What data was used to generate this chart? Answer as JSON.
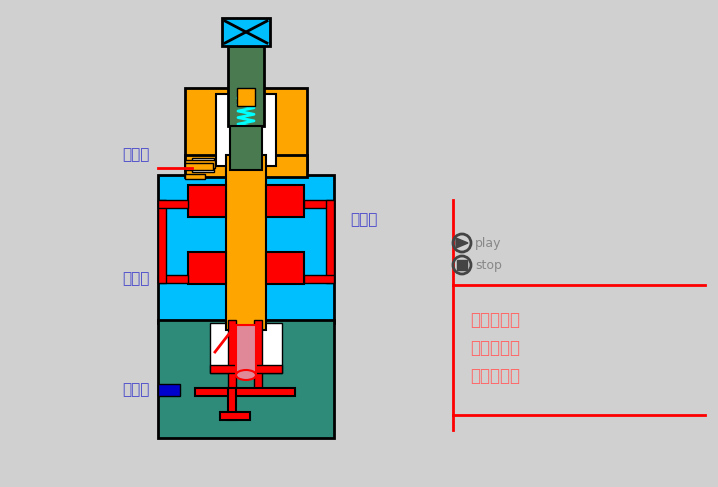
{
  "bg_color": "#d0d0d0",
  "OG": "#FFA500",
  "CY": "#00BFFF",
  "TL": "#2E8B7A",
  "GR": "#4A7A50",
  "RD": "#FF0000",
  "PK": "#E08898",
  "SP": "#00FFFF",
  "WH": "#FFFFFF",
  "BK": "#000000",
  "BL": "#0000CC",
  "text_blue": "#4444CC",
  "text_red": "#FF6666",
  "gray_dark": "#444444",
  "gray_med": "#888888",
  "labels": {
    "xie": "泄油口",
    "chu": "出油口",
    "jin": "进油口",
    "kong": "控制口"
  },
  "right_labels": [
    "内控内泄式",
    "外控内泄式",
    "外控外泄式"
  ],
  "play_text": "play",
  "stop_text": "stop"
}
